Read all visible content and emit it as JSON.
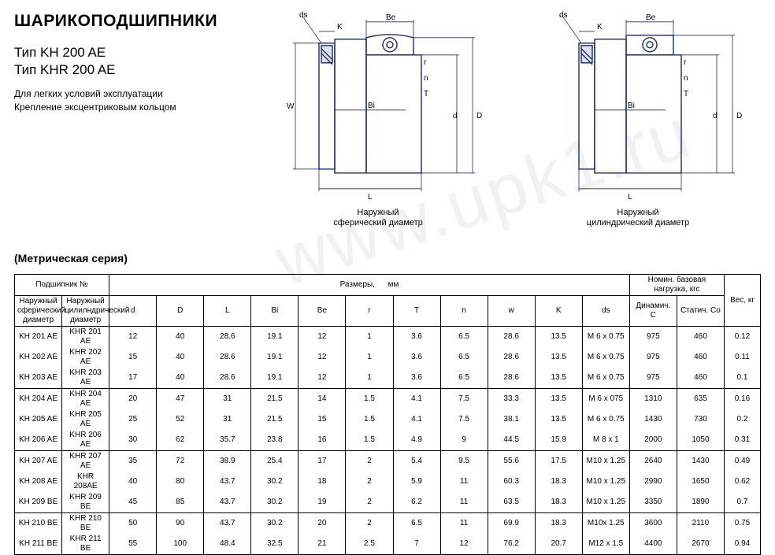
{
  "title": "ШАРИКОПОДШИПНИКИ",
  "type1": "Тип KH 200 AE",
  "type2": "Тип KHR 200 AE",
  "subtitle1": "Для легких условий эксплуатации",
  "subtitle2": "Крепление эксцентриковым кольцом",
  "diagram1_caption_l1": "Наружный",
  "diagram1_caption_l2": "сферический диаметр",
  "diagram2_caption_l1": "Наружный",
  "diagram2_caption_l2": "цилиндрический диаметр",
  "diagram_labels": {
    "ds": "ds",
    "Be": "Be",
    "K": "K",
    "Bi": "Bi",
    "r": "r",
    "n": "n",
    "T": "T",
    "W": "W",
    "d": "d",
    "D": "D",
    "L": "L"
  },
  "series_label": "(Метрическая серия)",
  "watermark": "www.upk1.ru",
  "table": {
    "header_bearing_no": "Подшипник №",
    "header_dimensions": "Размеры,",
    "header_dimensions_unit": "мм",
    "header_load": "Номин. базовая нагрузка, кгс",
    "header_weight": "Вес, кг",
    "sub_outer_sph": "Наружный сферический диаметр",
    "sub_outer_cyl": "Наружный цилилндрический диаметр",
    "cols_dim": [
      "d",
      "D",
      "L",
      "Bi",
      "Be",
      "r",
      "T",
      "n",
      "w",
      "K",
      "ds"
    ],
    "sub_dyn": "Динамич. C",
    "sub_stat": "Статич. Co",
    "rows": [
      {
        "g": 1,
        "a": "KH 201 AE",
        "b": "KHR 201 AE",
        "d": "12",
        "D": "40",
        "L": "28.6",
        "Bi": "19.1",
        "Be": "12",
        "r": "1",
        "T": "3.6",
        "n": "6.5",
        "w": "28.6",
        "K": "13.5",
        "ds": "M 6 x 0.75",
        "dyn": "975",
        "stat": "460",
        "wt": "0.12"
      },
      {
        "g": 0,
        "a": "KH 202 AE",
        "b": "KHR 202 AE",
        "d": "15",
        "D": "40",
        "L": "28.6",
        "Bi": "19.1",
        "Be": "12",
        "r": "1",
        "T": "3.6",
        "n": "6.5",
        "w": "28.6",
        "K": "13.5",
        "ds": "M 6 x 0.75",
        "dyn": "975",
        "stat": "460",
        "wt": "0.11"
      },
      {
        "g": 0,
        "a": "KH 203 AE",
        "b": "KHR 203 AE",
        "d": "17",
        "D": "40",
        "L": "28.6",
        "Bi": "19.1",
        "Be": "12",
        "r": "1",
        "T": "3.6",
        "n": "6.5",
        "w": "28.6",
        "K": "13.5",
        "ds": "M 6 x 0.75",
        "dyn": "975",
        "stat": "460",
        "wt": "0.1"
      },
      {
        "g": 1,
        "a": "KH 204 AE",
        "b": "KHR 204 AE",
        "d": "20",
        "D": "47",
        "L": "31",
        "Bi": "21.5",
        "Be": "14",
        "r": "1.5",
        "T": "4.1",
        "n": "7.5",
        "w": "33.3",
        "K": "13.5",
        "ds": "M 6 x 075",
        "dyn": "1310",
        "stat": "635",
        "wt": "0.16"
      },
      {
        "g": 0,
        "a": "KH 205 AE",
        "b": "KHR 205 AE",
        "d": "25",
        "D": "52",
        "L": "31",
        "Bi": "21.5",
        "Be": "15",
        "r": "1.5",
        "T": "4.1",
        "n": "7.5",
        "w": "38.1",
        "K": "13.5",
        "ds": "M 6 x 0.75",
        "dyn": "1430",
        "stat": "730",
        "wt": "0.2"
      },
      {
        "g": 0,
        "a": "KH 206 AE",
        "b": "KHR 206 AE",
        "d": "30",
        "D": "62",
        "L": "35.7",
        "Bi": "23.8",
        "Be": "16",
        "r": "1.5",
        "T": "4.9",
        "n": "9",
        "w": "44.5",
        "K": "15.9",
        "ds": "M 8 x 1",
        "dyn": "2000",
        "stat": "1050",
        "wt": "0.31"
      },
      {
        "g": 1,
        "a": "KH 207 AE",
        "b": "KHR 207 AE",
        "d": "35",
        "D": "72",
        "L": "38.9",
        "Bi": "25.4",
        "Be": "17",
        "r": "2",
        "T": "5.4",
        "n": "9.5",
        "w": "55.6",
        "K": "17.5",
        "ds": "M10 x 1.25",
        "dyn": "2640",
        "stat": "1430",
        "wt": "0.49"
      },
      {
        "g": 0,
        "a": "KH 208 AE",
        "b": "KHR 208AE",
        "d": "40",
        "D": "80",
        "L": "43.7",
        "Bi": "30.2",
        "Be": "18",
        "r": "2",
        "T": "5.9",
        "n": "11",
        "w": "60.3",
        "K": "18.3",
        "ds": "M10 x 1.25",
        "dyn": "2990",
        "stat": "1650",
        "wt": "0.62"
      },
      {
        "g": 0,
        "a": "KH 209 BE",
        "b": "KHR 209 BE",
        "d": "45",
        "D": "85",
        "L": "43.7",
        "Bi": "30.2",
        "Be": "19",
        "r": "2",
        "T": "6.2",
        "n": "11",
        "w": "63.5",
        "K": "18.3",
        "ds": "M10 x 1.25",
        "dyn": "3350",
        "stat": "1890",
        "wt": "0.7"
      },
      {
        "g": 1,
        "a": "KH 210 BE",
        "b": "KHR 210 BE",
        "d": "50",
        "D": "90",
        "L": "43.7",
        "Bi": "30.2",
        "Be": "20",
        "r": "2",
        "T": "6.5",
        "n": "11",
        "w": "69.9",
        "K": "18.3",
        "ds": "M10x 1.25",
        "dyn": "3600",
        "stat": "2110",
        "wt": "0.75"
      },
      {
        "g": 0,
        "a": "KH 211 BE",
        "b": "KHR 211 BE",
        "d": "55",
        "D": "100",
        "L": "48.4",
        "Bi": "32.5",
        "Be": "21",
        "r": "2.5",
        "T": "7",
        "n": "12",
        "w": "76.2",
        "K": "20.7",
        "ds": "M12 x 1.5",
        "dyn": "4400",
        "stat": "2670",
        "wt": "0.94"
      }
    ]
  },
  "style": {
    "font_family": "Arial, sans-serif",
    "bg_color": "#ffffff",
    "text_color": "#000000",
    "border_color": "#000000",
    "diagram_stroke": "#1a2a6c",
    "diagram_stroke_width": 1.4,
    "watermark_color": "rgba(150,150,150,0.13)",
    "title_fontsize": 21,
    "type_fontsize": 17,
    "subtitle_fontsize": 12,
    "table_fontsize": 10
  }
}
